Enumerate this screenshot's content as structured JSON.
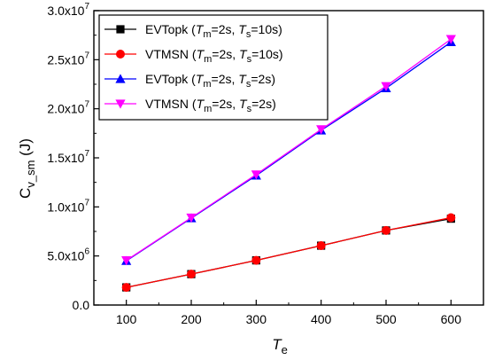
{
  "chart_data": {
    "type": "line",
    "x": [
      100,
      200,
      300,
      400,
      500,
      600
    ],
    "xlim": [
      50,
      650
    ],
    "ylim": [
      0,
      30000000
    ],
    "x_ticks": [
      {
        "value": 100,
        "label": "100"
      },
      {
        "value": 200,
        "label": "200"
      },
      {
        "value": 300,
        "label": "300"
      },
      {
        "value": 400,
        "label": "400"
      },
      {
        "value": 500,
        "label": "500"
      },
      {
        "value": 600,
        "label": "600"
      }
    ],
    "y_ticks": [
      {
        "value": 0,
        "mant": "0.0",
        "exp": ""
      },
      {
        "value": 5000000,
        "mant": "5.0x10",
        "exp": "6"
      },
      {
        "value": 10000000,
        "mant": "1.0x10",
        "exp": "7"
      },
      {
        "value": 15000000,
        "mant": "1.5x10",
        "exp": "7"
      },
      {
        "value": 20000000,
        "mant": "2.0x10",
        "exp": "7"
      },
      {
        "value": 25000000,
        "mant": "2.5x10",
        "exp": "7"
      },
      {
        "value": 30000000,
        "mant": "3.0x10",
        "exp": "7"
      }
    ],
    "xlabel": {
      "main": "T",
      "sub": "e"
    },
    "ylabel": {
      "main": "C",
      "sub": "v_sm",
      "rest": " (J)"
    },
    "legend_position": "top-left",
    "grid": false,
    "series": [
      {
        "name": "EVTopk (Tm=2s, Ts=10s)",
        "label_parts": {
          "algo": "EVTopk",
          "tm": "=2s, ",
          "ts": "=10s)"
        },
        "color": "#000000",
        "marker": "square",
        "values": [
          1800000,
          3150000,
          4550000,
          6050000,
          7600000,
          8800000
        ]
      },
      {
        "name": "VTMSN (Tm=2s, Ts=10s)",
        "label_parts": {
          "algo": "VTMSN",
          "tm": "=2s, ",
          "ts": "=10s)"
        },
        "color": "#ff0000",
        "marker": "circle",
        "values": [
          1800000,
          3150000,
          4550000,
          6050000,
          7600000,
          8900000
        ]
      },
      {
        "name": "EVTopk (Tm=2s, Ts=2s)",
        "label_parts": {
          "algo": "EVTopk",
          "tm": "=2s, ",
          "ts": "=2s)"
        },
        "color": "#0000ff",
        "marker": "triangle-up",
        "values": [
          4500000,
          8850000,
          13200000,
          17800000,
          22100000,
          26800000
        ]
      },
      {
        "name": "VTMSN (Tm=2s, Ts=2s)",
        "label_parts": {
          "algo": "VTMSN",
          "tm": "=2s, ",
          "ts": "=2s)"
        },
        "color": "#ff00ff",
        "marker": "triangle-down",
        "values": [
          4550000,
          8900000,
          13300000,
          17900000,
          22300000,
          27100000
        ]
      }
    ]
  }
}
